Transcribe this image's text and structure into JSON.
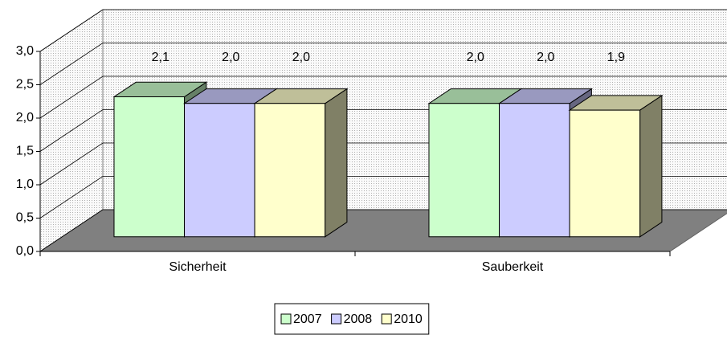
{
  "chart_data": {
    "type": "bar3d",
    "categories": [
      "Sicherheit",
      "Sauberkeit"
    ],
    "series": [
      {
        "name": "2007",
        "color": "#ccffcc",
        "values": [
          2.1,
          2.0
        ],
        "value_labels": [
          "2,1",
          "2,0"
        ]
      },
      {
        "name": "2008",
        "color": "#ccccff",
        "values": [
          2.0,
          2.0
        ],
        "value_labels": [
          "2,0",
          "2,0"
        ]
      },
      {
        "name": "2010",
        "color": "#ffffcc",
        "values": [
          2.0,
          1.9
        ],
        "value_labels": [
          "2,0",
          "1,9"
        ]
      }
    ],
    "ylim": [
      0,
      3
    ],
    "yticks": [
      {
        "value": 0,
        "label": "0,0"
      },
      {
        "value": 0.5,
        "label": "0,5"
      },
      {
        "value": 1,
        "label": "1,0"
      },
      {
        "value": 1.5,
        "label": "1,5"
      },
      {
        "value": 2,
        "label": "2,0"
      },
      {
        "value": 2.5,
        "label": "2,5"
      },
      {
        "value": 3,
        "label": "3,0"
      }
    ],
    "grid": true,
    "legend": "bottom"
  }
}
